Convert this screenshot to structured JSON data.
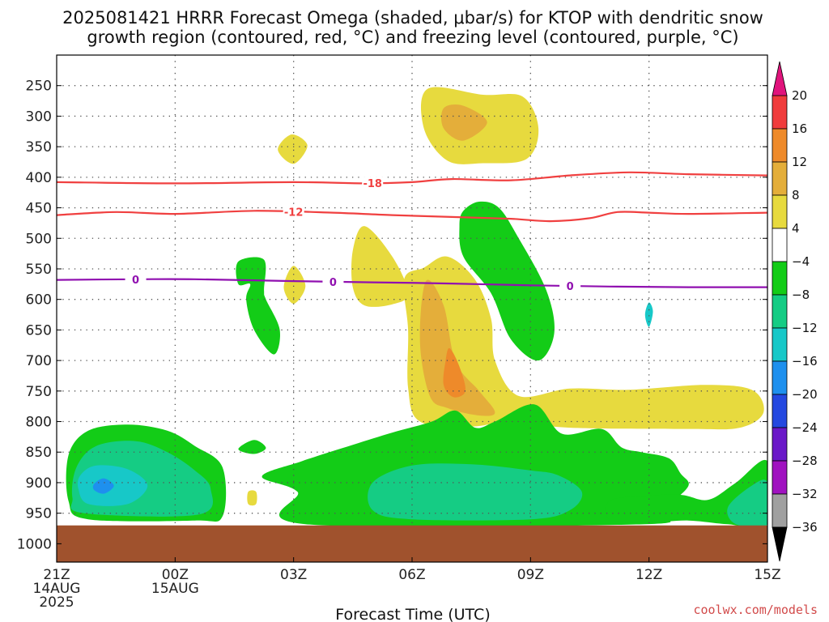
{
  "chart_data": {
    "type": "heatmap",
    "title_lines": [
      "2025081421 HRRR Forecast Omega (shaded, μbar/s) for KTOP with dendritic snow",
      "growth region (contoured, red, °C) and freezing level (contoured, purple, °C)"
    ],
    "xlabel": "Forecast Time (UTC)",
    "credit": "coolwx.com/models",
    "x_ticks": [
      {
        "hour": 0,
        "lines": [
          "21Z",
          "14AUG",
          "2025"
        ]
      },
      {
        "hour": 3,
        "lines": [
          "00Z",
          "15AUG"
        ]
      },
      {
        "hour": 6,
        "lines": [
          "03Z"
        ]
      },
      {
        "hour": 9,
        "lines": [
          "06Z"
        ]
      },
      {
        "hour": 12,
        "lines": [
          "09Z"
        ]
      },
      {
        "hour": 15,
        "lines": [
          "12Z"
        ]
      },
      {
        "hour": 18,
        "lines": [
          "15Z"
        ]
      }
    ],
    "y_ticks": [
      250,
      300,
      350,
      400,
      450,
      500,
      550,
      600,
      650,
      700,
      750,
      800,
      850,
      900,
      950,
      1000
    ],
    "xlim_hours": [
      0,
      18
    ],
    "ylim_mb": [
      200,
      1030
    ],
    "colorbar": {
      "labels": [
        "20",
        "16",
        "12",
        "8",
        "4",
        "-4",
        "-8",
        "-12",
        "-16",
        "-20",
        "-24",
        "-28",
        "-32",
        "-36"
      ],
      "bins": [
        {
          "from": 20,
          "to": 16,
          "color": "#f03c3c"
        },
        {
          "from": 16,
          "to": 12,
          "color": "#ee8a2a"
        },
        {
          "from": 12,
          "to": 8,
          "color": "#e4ae3a"
        },
        {
          "from": 8,
          "to": 4,
          "color": "#e7da3e"
        },
        {
          "from": 4,
          "to": -4,
          "color": "#ffffff"
        },
        {
          "from": -4,
          "to": -8,
          "color": "#13cc17"
        },
        {
          "from": -8,
          "to": -12,
          "color": "#15cc84"
        },
        {
          "from": -12,
          "to": -16,
          "color": "#17c8c8"
        },
        {
          "from": -16,
          "to": -20,
          "color": "#1e90ee"
        },
        {
          "from": -20,
          "to": -24,
          "color": "#2448e0"
        },
        {
          "from": -24,
          "to": -28,
          "color": "#6a18c8"
        },
        {
          "from": -28,
          "to": -32,
          "color": "#a012c0"
        },
        {
          "from": -32,
          "to": -36,
          "color": "#a0a0a0"
        }
      ],
      "top_arrow_color": "#e0147c",
      "bottom_arrow_color": "#000000"
    },
    "ground_color": "#a0522d",
    "ground_from_mb": 970,
    "omega_regions": [
      {
        "color": "#e7da3e",
        "points": [
          [
            9.4,
            255
          ],
          [
            10.8,
            265
          ],
          [
            11.8,
            268
          ],
          [
            12.2,
            320
          ],
          [
            11.9,
            370
          ],
          [
            10.8,
            377
          ],
          [
            9.9,
            373
          ],
          [
            9.3,
            320
          ]
        ]
      },
      {
        "color": "#e4ae3a",
        "points": [
          [
            9.8,
            287
          ],
          [
            10.3,
            283
          ],
          [
            10.9,
            310
          ],
          [
            10.3,
            340
          ],
          [
            9.8,
            320
          ]
        ]
      },
      {
        "color": "#e7da3e",
        "points": [
          [
            5.95,
            330
          ],
          [
            6.35,
            348
          ],
          [
            6.0,
            378
          ],
          [
            5.6,
            355
          ]
        ]
      },
      {
        "color": "#e7da3e",
        "points": [
          [
            6.0,
            545
          ],
          [
            6.3,
            578
          ],
          [
            6.0,
            607
          ],
          [
            5.75,
            580
          ]
        ]
      },
      {
        "color": "#e7da3e",
        "points": [
          [
            7.8,
            480
          ],
          [
            8.5,
            530
          ],
          [
            8.9,
            590
          ],
          [
            8.5,
            608
          ],
          [
            7.8,
            610
          ],
          [
            7.5,
            580
          ],
          [
            7.5,
            520
          ]
        ]
      },
      {
        "color": "#e7da3e",
        "points": [
          [
            8.8,
            567
          ],
          [
            9.3,
            548
          ],
          [
            9.9,
            530
          ],
          [
            10.6,
            568
          ],
          [
            11.0,
            632
          ],
          [
            11.1,
            700
          ],
          [
            11.7,
            758
          ],
          [
            13.0,
            746
          ],
          [
            14.5,
            748
          ],
          [
            16.4,
            740
          ],
          [
            17.6,
            748
          ],
          [
            17.9,
            785
          ],
          [
            17.3,
            810
          ],
          [
            16.0,
            812
          ],
          [
            13.0,
            810
          ],
          [
            11.5,
            800
          ],
          [
            10.5,
            808
          ],
          [
            9.2,
            800
          ],
          [
            8.9,
            745
          ],
          [
            8.9,
            650
          ]
        ]
      },
      {
        "color": "#e4ae3a",
        "points": [
          [
            9.35,
            570
          ],
          [
            9.8,
            610
          ],
          [
            10.1,
            702
          ],
          [
            10.7,
            750
          ],
          [
            11.1,
            785
          ],
          [
            10.7,
            790
          ],
          [
            9.9,
            778
          ],
          [
            9.45,
            758
          ],
          [
            9.2,
            670
          ]
        ]
      },
      {
        "color": "#ee8a2a",
        "points": [
          [
            9.95,
            680
          ],
          [
            10.2,
            710
          ],
          [
            10.35,
            750
          ],
          [
            10.05,
            760
          ],
          [
            9.8,
            740
          ],
          [
            9.85,
            700
          ]
        ]
      },
      {
        "color": "#13cc17",
        "points": [
          [
            10.3,
            455
          ],
          [
            10.7,
            440
          ],
          [
            11.2,
            450
          ],
          [
            11.7,
            500
          ],
          [
            12.4,
            585
          ],
          [
            12.6,
            655
          ],
          [
            12.2,
            700
          ],
          [
            11.5,
            665
          ],
          [
            11.0,
            590
          ],
          [
            10.3,
            530
          ],
          [
            10.2,
            480
          ]
        ]
      },
      {
        "color": "#17c8c8",
        "points": [
          [
            15.0,
            605
          ],
          [
            15.1,
            620
          ],
          [
            15.0,
            645
          ],
          [
            14.9,
            625
          ]
        ]
      },
      {
        "color": "#13cc17",
        "points": [
          [
            4.6,
            538
          ],
          [
            5.25,
            535
          ],
          [
            5.25,
            585
          ],
          [
            5.3,
            600
          ],
          [
            5.65,
            650
          ],
          [
            5.5,
            690
          ],
          [
            5.0,
            650
          ],
          [
            4.8,
            600
          ],
          [
            4.9,
            575
          ],
          [
            4.6,
            575
          ]
        ]
      },
      {
        "color": "#13cc17",
        "points": [
          [
            0.3,
            855
          ],
          [
            0.8,
            815
          ],
          [
            1.8,
            805
          ],
          [
            2.8,
            815
          ],
          [
            3.5,
            840
          ],
          [
            4.2,
            875
          ],
          [
            4.2,
            955
          ],
          [
            3.5,
            962
          ],
          [
            0.8,
            960
          ],
          [
            0.3,
            930
          ]
        ]
      },
      {
        "color": "#15cc84",
        "points": [
          [
            0.5,
            875
          ],
          [
            1.0,
            840
          ],
          [
            2.0,
            832
          ],
          [
            2.8,
            850
          ],
          [
            3.5,
            880
          ],
          [
            3.9,
            910
          ],
          [
            3.6,
            952
          ],
          [
            0.7,
            950
          ],
          [
            0.4,
            925
          ]
        ]
      },
      {
        "color": "#17c8c8",
        "points": [
          [
            0.6,
            888
          ],
          [
            1.0,
            872
          ],
          [
            1.8,
            878
          ],
          [
            2.3,
            905
          ],
          [
            1.8,
            935
          ],
          [
            0.8,
            935
          ],
          [
            0.55,
            910
          ]
        ]
      },
      {
        "color": "#1e90ee",
        "points": [
          [
            0.95,
            902
          ],
          [
            1.2,
            893
          ],
          [
            1.45,
            905
          ],
          [
            1.2,
            918
          ],
          [
            0.95,
            912
          ]
        ]
      },
      {
        "color": "#13cc17",
        "points": [
          [
            6.2,
            865
          ],
          [
            7.5,
            838
          ],
          [
            8.5,
            818
          ],
          [
            9.5,
            800
          ],
          [
            10.1,
            782
          ],
          [
            10.6,
            810
          ],
          [
            11.1,
            800
          ],
          [
            12.1,
            772
          ],
          [
            12.8,
            820
          ],
          [
            13.8,
            812
          ],
          [
            14.3,
            842
          ],
          [
            14.8,
            850
          ],
          [
            15.5,
            860
          ],
          [
            15.8,
            885
          ],
          [
            16.0,
            905
          ],
          [
            15.5,
            935
          ],
          [
            15.0,
            952
          ],
          [
            14.9,
            968
          ],
          [
            6.3,
            968
          ],
          [
            6.1,
            915
          ],
          [
            5.2,
            890
          ]
        ]
      },
      {
        "color": "#15cc84",
        "points": [
          [
            8.0,
            900
          ],
          [
            9.0,
            872
          ],
          [
            10.5,
            870
          ],
          [
            12.0,
            880
          ],
          [
            12.7,
            888
          ],
          [
            13.3,
            915
          ],
          [
            13.0,
            945
          ],
          [
            12.0,
            960
          ],
          [
            9.0,
            960
          ],
          [
            8.0,
            945
          ]
        ]
      },
      {
        "color": "#13cc17",
        "points": [
          [
            14.0,
            930
          ],
          [
            14.8,
            922
          ],
          [
            15.8,
            920
          ],
          [
            16.5,
            928
          ],
          [
            17.2,
            900
          ],
          [
            18.0,
            865
          ],
          [
            18.0,
            968
          ],
          [
            17.0,
            968
          ],
          [
            16.0,
            962
          ],
          [
            15.0,
            965
          ],
          [
            14.0,
            960
          ]
        ]
      },
      {
        "color": "#15cc84",
        "points": [
          [
            17.0,
            940
          ],
          [
            17.6,
            905
          ],
          [
            18.0,
            900
          ],
          [
            18.0,
            968
          ],
          [
            17.2,
            968
          ]
        ]
      },
      {
        "color": "#13cc17",
        "points": [
          [
            4.6,
            845
          ],
          [
            5.0,
            830
          ],
          [
            5.3,
            843
          ],
          [
            5.0,
            853
          ]
        ]
      },
      {
        "color": "#e7da3e",
        "points": [
          [
            4.85,
            915
          ],
          [
            5.05,
            915
          ],
          [
            5.05,
            935
          ],
          [
            4.85,
            935
          ]
        ]
      }
    ],
    "contours": [
      {
        "name": "-18",
        "color": "#f04040",
        "label_hour": 8.0,
        "points": [
          [
            0,
            408
          ],
          [
            3,
            410
          ],
          [
            6,
            408
          ],
          [
            7.8,
            410
          ],
          [
            9,
            408
          ],
          [
            10,
            403
          ],
          [
            11.5,
            405
          ],
          [
            13.0,
            397
          ],
          [
            14.5,
            392
          ],
          [
            16.0,
            395
          ],
          [
            18,
            397
          ]
        ]
      },
      {
        "name": "-12",
        "color": "#f04040",
        "label_hour": 6.0,
        "points": [
          [
            0,
            462
          ],
          [
            1.5,
            457
          ],
          [
            3,
            460
          ],
          [
            5,
            455
          ],
          [
            7,
            458
          ],
          [
            8.5,
            462
          ],
          [
            10,
            465
          ],
          [
            11.5,
            468
          ],
          [
            12.5,
            472
          ],
          [
            13.5,
            467
          ],
          [
            14.2,
            457
          ],
          [
            15.0,
            458
          ],
          [
            16.0,
            460
          ],
          [
            18,
            458
          ]
        ]
      },
      {
        "name": "0",
        "color": "#9010b0",
        "label_hour": 2.0,
        "points": [
          [
            0,
            568
          ],
          [
            2.0,
            567
          ],
          [
            3.5,
            567
          ],
          [
            6.0,
            570
          ],
          [
            8.0,
            572
          ],
          [
            10.0,
            574
          ],
          [
            12.0,
            577
          ],
          [
            14.0,
            579
          ],
          [
            16.0,
            580
          ],
          [
            18,
            580
          ]
        ]
      },
      {
        "name": "0",
        "color": "#9010b0",
        "label_hour": 7.0,
        "points": []
      },
      {
        "name": "0",
        "color": "#9010b0",
        "label_hour": 13.0,
        "points": []
      }
    ]
  }
}
